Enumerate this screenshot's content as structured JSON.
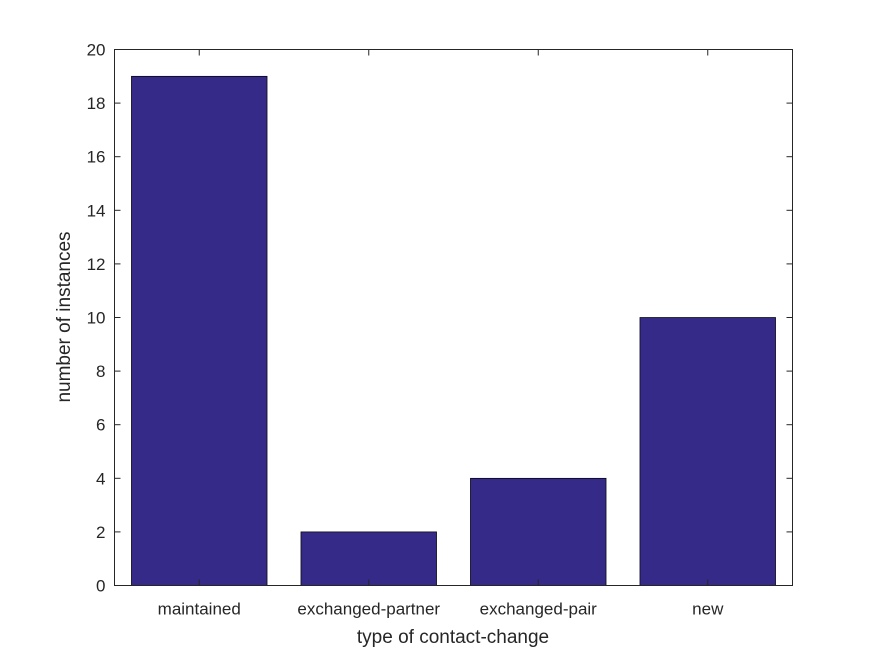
{
  "chart_data": {
    "type": "bar",
    "categories": [
      "maintained",
      "exchanged-partner",
      "exchanged-pair",
      "new"
    ],
    "values": [
      19,
      2,
      4,
      10
    ],
    "title": "",
    "xlabel": "type of contact-change",
    "ylabel": "number of instances",
    "ylim": [
      0,
      20
    ],
    "yticks": [
      "0",
      "2",
      "4",
      "6",
      "8",
      "10",
      "12",
      "14",
      "16",
      "18",
      "20"
    ],
    "grid": false,
    "bar_color": "#352a87"
  }
}
